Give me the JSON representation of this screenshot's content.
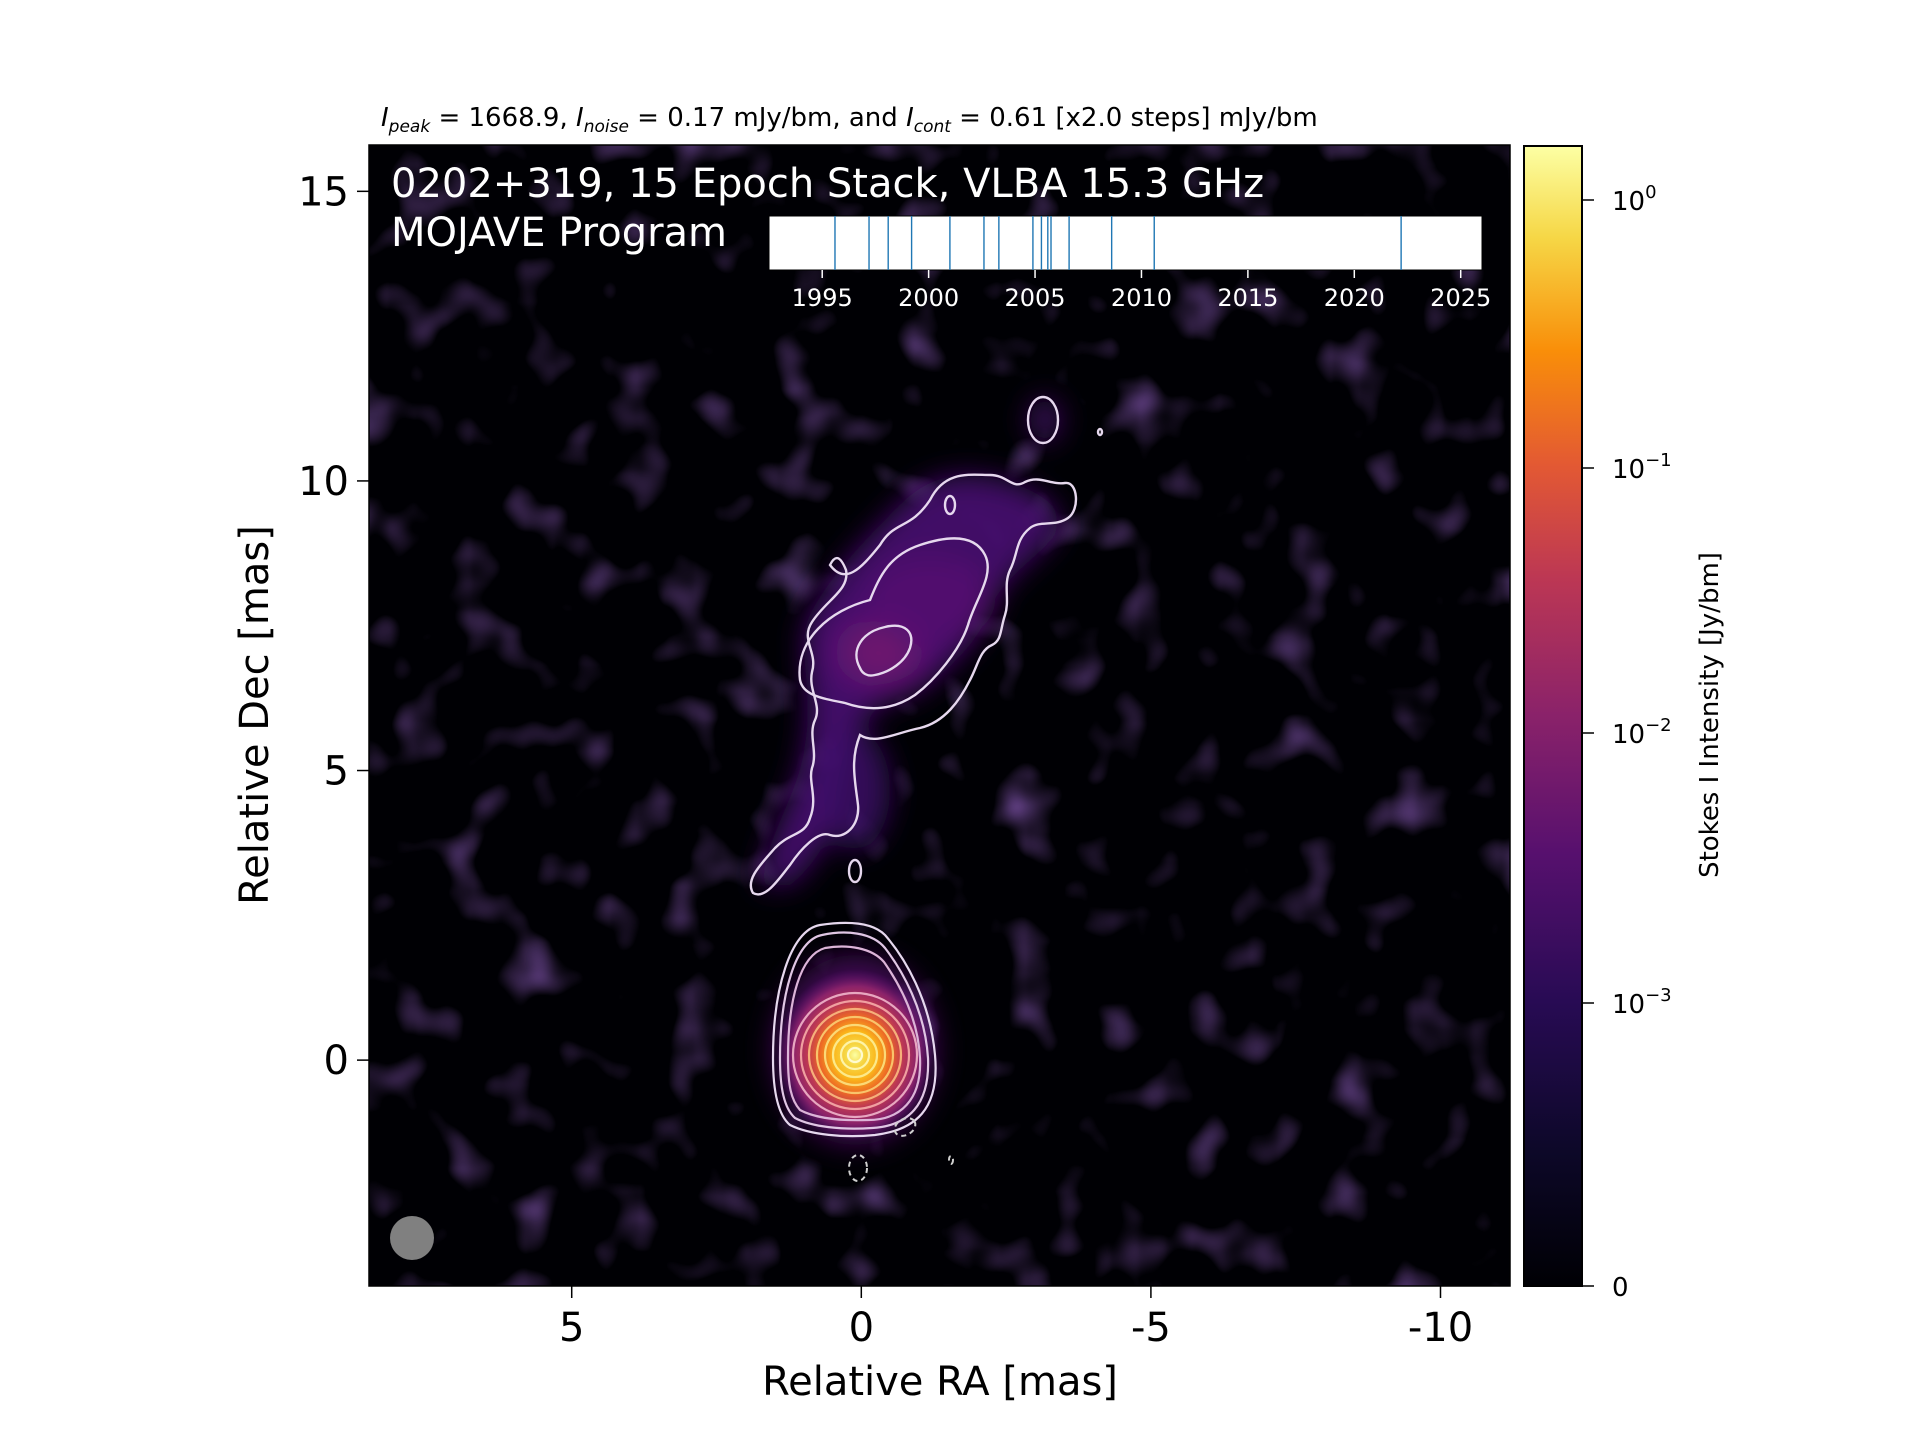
{
  "chart_data": {
    "type": "heatmap",
    "title_parts": {
      "peak_sym": "I",
      "peak_sub": "peak",
      "peak_val": " = 1668.9, ",
      "noise_sym": "I",
      "noise_sub": "noise",
      "noise_val": " = 0.17 mJy/bm, and ",
      "cont_sym": "I",
      "cont_sub": "cont",
      "cont_val": " = 0.61 [x2.0 steps] mJy/bm"
    },
    "overlay_line1": "0202+319, 15 Epoch Stack, VLBA 15.3 GHz",
    "overlay_line2": "MOJAVE Program",
    "xlabel": "Relative RA [mas]",
    "ylabel": "Relative Dec [mas]",
    "xlim": [
      8.5,
      -11.2
    ],
    "ylim": [
      -3.9,
      15.8
    ],
    "xticks": [
      {
        "value": 5,
        "label": "5"
      },
      {
        "value": 0,
        "label": "0"
      },
      {
        "value": -5,
        "label": "-5"
      },
      {
        "value": -10,
        "label": "-10"
      }
    ],
    "yticks": [
      {
        "value": 0,
        "label": "0"
      },
      {
        "value": 5,
        "label": "5"
      },
      {
        "value": 10,
        "label": "10"
      },
      {
        "value": 15,
        "label": "15"
      }
    ],
    "colorbar": {
      "label": "Stokes I Intensity [Jy/bm]",
      "scale": "log",
      "colormap": "inferno",
      "ticks": [
        {
          "value": 0,
          "label": "0"
        },
        {
          "value": 0.001,
          "base": "10",
          "exp": "−3"
        },
        {
          "value": 0.01,
          "base": "10",
          "exp": "−2"
        },
        {
          "value": 0.1,
          "base": "10",
          "exp": "−1"
        },
        {
          "value": 1,
          "base": "10",
          "exp": "0"
        }
      ]
    },
    "epoch_timeline": {
      "xlim": [
        1992.5,
        2026
      ],
      "ticks": [
        1995,
        2000,
        2005,
        2010,
        2015,
        2020,
        2025
      ],
      "epochs": [
        1995.6,
        1997.2,
        1998.1,
        1999.2,
        2001.0,
        2002.6,
        2003.3,
        2004.9,
        2005.3,
        2005.6,
        2005.75,
        2006.6,
        2008.6,
        2010.6,
        2022.2
      ]
    },
    "jet_features": [
      {
        "name": "core",
        "ra": 0,
        "dec": 0,
        "peak": 1.6689
      },
      {
        "name": "jet-knot",
        "ra": -0.5,
        "dec": 7.0,
        "peak": 0.004
      }
    ],
    "colors": {
      "background": "#000004",
      "contour": "#e6d8ee",
      "epoch_line": "#1f77b4",
      "beam": "#808080"
    }
  }
}
